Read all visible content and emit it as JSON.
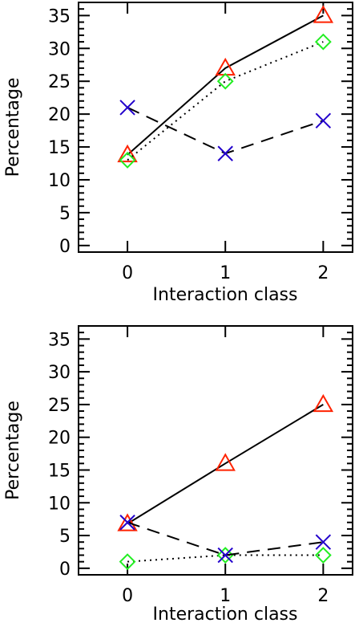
{
  "chart_data": [
    {
      "type": "line",
      "xlabel": "Interaction class",
      "ylabel": "Percentage",
      "x": [
        0,
        1,
        2
      ],
      "xlim": [
        -0.5,
        2.3
      ],
      "ylim": [
        -1,
        37
      ],
      "xticks": [
        0,
        1,
        2
      ],
      "yticks": [
        0,
        5,
        10,
        15,
        20,
        25,
        30,
        35
      ],
      "grid": false,
      "series": [
        {
          "marker": "triangle",
          "line": "solid",
          "color": "#ff2200",
          "values": [
            13.8,
            27,
            35
          ]
        },
        {
          "marker": "diamond",
          "line": "dotted",
          "color": "#22ee22",
          "values": [
            13,
            25,
            31
          ]
        },
        {
          "marker": "x",
          "line": "dashed",
          "color": "#2200cc",
          "values": [
            21,
            14,
            19
          ]
        }
      ]
    },
    {
      "type": "line",
      "xlabel": "Interaction class",
      "ylabel": "Percentage",
      "x": [
        0,
        1,
        2
      ],
      "xlim": [
        -0.5,
        2.3
      ],
      "ylim": [
        -1,
        37
      ],
      "xticks": [
        0,
        1,
        2
      ],
      "yticks": [
        0,
        5,
        10,
        15,
        20,
        25,
        30,
        35
      ],
      "grid": false,
      "series": [
        {
          "marker": "triangle",
          "line": "solid",
          "color": "#ff2200",
          "values": [
            6.8,
            16,
            25
          ]
        },
        {
          "marker": "diamond",
          "line": "dotted",
          "color": "#22ee22",
          "values": [
            1,
            2,
            2
          ]
        },
        {
          "marker": "x",
          "line": "dashed",
          "color": "#2200cc",
          "values": [
            7,
            2,
            4
          ]
        }
      ]
    }
  ]
}
